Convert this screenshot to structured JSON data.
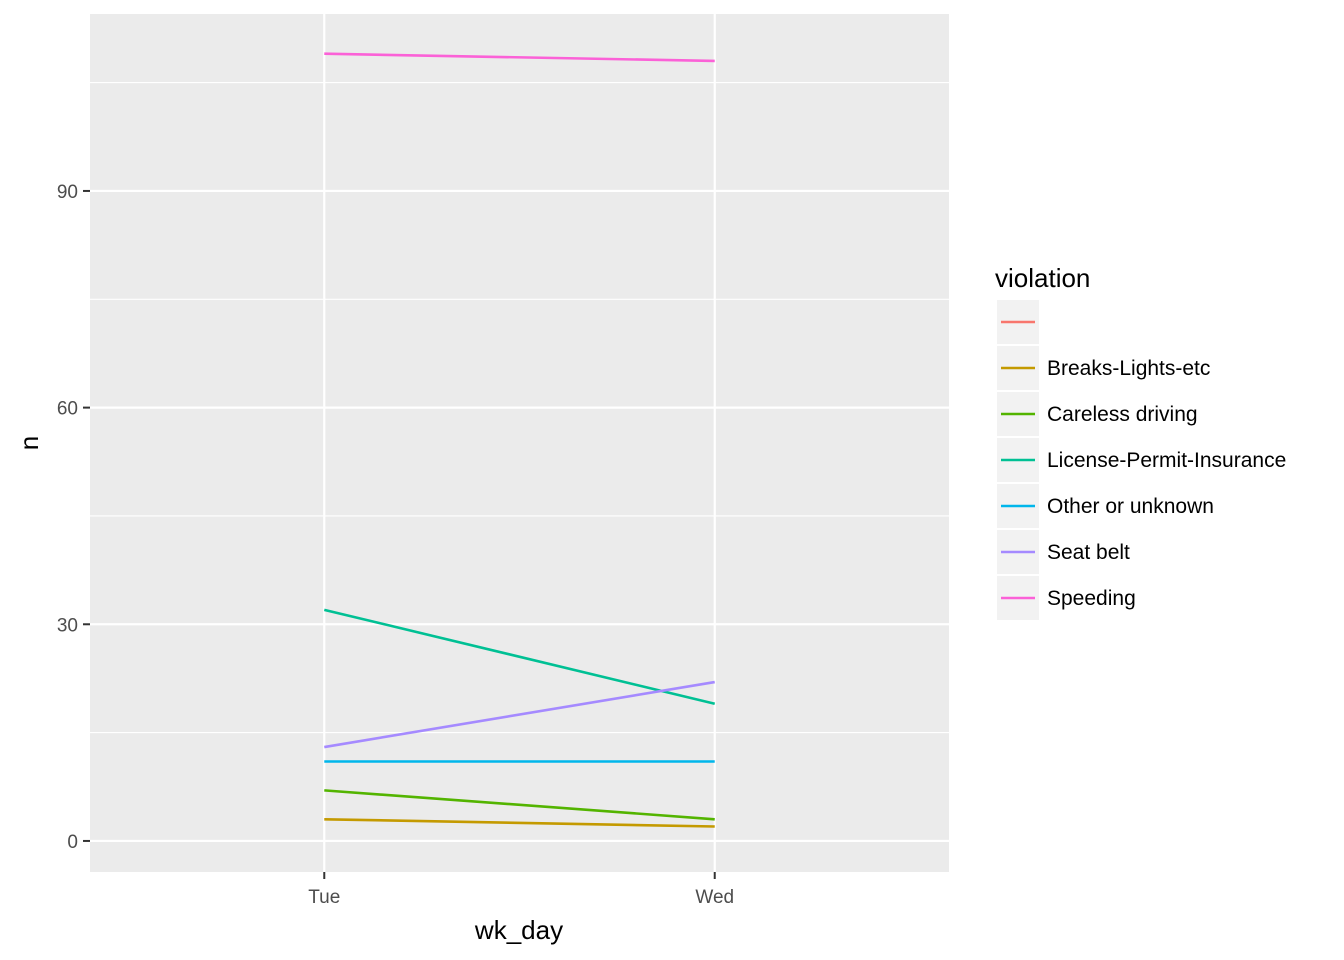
{
  "chart_data": {
    "type": "line",
    "xlabel": "wk_day",
    "ylabel": "n",
    "categories": [
      "Tue",
      "Wed"
    ],
    "ylim": [
      -4.3,
      114.5
    ],
    "yticks": [
      0,
      30,
      60,
      90
    ],
    "yticks_minor": [
      15,
      45,
      75,
      105
    ],
    "grid": true,
    "legend": {
      "title": "violation",
      "position": "right"
    },
    "series": [
      {
        "name": "",
        "color": "#F8766D",
        "values": [
          null,
          null
        ]
      },
      {
        "name": "Breaks-Lights-etc",
        "color": "#C49A00",
        "values": [
          3,
          2
        ]
      },
      {
        "name": "Careless driving",
        "color": "#53B400",
        "values": [
          7,
          3
        ]
      },
      {
        "name": "License-Permit-Insurance",
        "color": "#00C094",
        "values": [
          32,
          19
        ]
      },
      {
        "name": "Other or unknown",
        "color": "#00B6EB",
        "values": [
          11,
          11
        ]
      },
      {
        "name": "Seat belt",
        "color": "#A58AFF",
        "values": [
          13,
          22
        ]
      },
      {
        "name": "Speeding",
        "color": "#FB61D7",
        "values": [
          109,
          108
        ]
      }
    ]
  }
}
